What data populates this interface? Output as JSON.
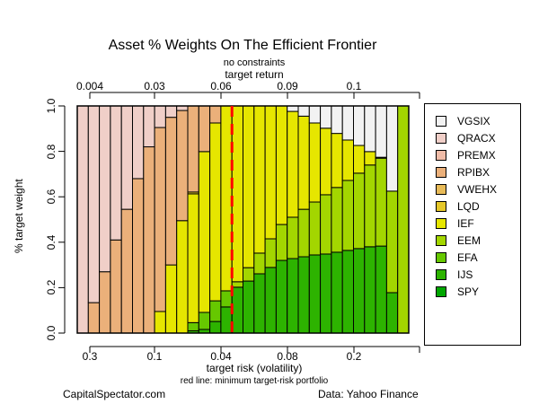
{
  "chart_data": {
    "type": "bar",
    "stacked": true,
    "title": "Asset % Weights On The Efficient Frontier",
    "subtitle": "no constraints",
    "top_axis_label": "target return",
    "top_axis_ticks": [
      "0.004",
      "0.03",
      "0.06",
      "0.09",
      "0.1",
      ""
    ],
    "xlabel": "target risk (volatility)",
    "x_ticks": [
      "0.3",
      "0.1",
      "0.04",
      "0.08",
      "0.2",
      ""
    ],
    "ylabel": "% target weight",
    "y_ticks": [
      "0.0",
      "0.2",
      "0.4",
      "0.6",
      "0.8",
      "1.0"
    ],
    "ylim": [
      0,
      1
    ],
    "annotation": "red line: minimum target-risk portfolio",
    "min_risk_bar_boundary": 14,
    "bar_count": 30,
    "series": [
      {
        "name": "SPY",
        "color": "#00A600",
        "values": [
          0,
          0,
          0,
          0,
          0,
          0,
          0,
          0,
          0,
          0,
          0,
          0,
          0,
          0,
          0,
          0,
          0,
          0,
          0,
          0,
          0,
          0,
          0,
          0,
          0,
          0,
          0,
          0,
          0,
          0
        ]
      },
      {
        "name": "IJS",
        "color": "#2DB300",
        "values": [
          0,
          0,
          0,
          0,
          0,
          0,
          0,
          0,
          0,
          0,
          0.01,
          0.016,
          0.051,
          0.115,
          0.202,
          0.229,
          0.261,
          0.289,
          0.32,
          0.328,
          0.336,
          0.344,
          0.348,
          0.356,
          0.364,
          0.372,
          0.38,
          0.383,
          0.178,
          0
        ]
      },
      {
        "name": "EFA",
        "color": "#66C800",
        "values": [
          0,
          0,
          0,
          0,
          0,
          0,
          0,
          0,
          0,
          0,
          0.036,
          0.075,
          0.091,
          0.071,
          0,
          0,
          0,
          0,
          0,
          0,
          0,
          0,
          0,
          0,
          0,
          0,
          0,
          0,
          0,
          0
        ]
      },
      {
        "name": "EEM",
        "color": "#A3D600",
        "values": [
          0,
          0,
          0,
          0,
          0,
          0,
          0,
          0,
          0,
          0,
          0,
          0,
          0,
          0,
          0.024,
          0.059,
          0.091,
          0.126,
          0.158,
          0.182,
          0.209,
          0.233,
          0.261,
          0.285,
          0.308,
          0.332,
          0.36,
          0.387,
          0.447,
          1.0
        ]
      },
      {
        "name": "IEF",
        "color": "#E6E600",
        "values": [
          0,
          0,
          0,
          0,
          0,
          0,
          0,
          0.095,
          0.3,
          0.495,
          0.567,
          0.708,
          0.783,
          0.814,
          0.774,
          0.712,
          0.648,
          0.585,
          0.522,
          0.466,
          0.41,
          0.348,
          0.293,
          0.238,
          0.178,
          0.122,
          0.059,
          0.004,
          0,
          0
        ]
      },
      {
        "name": "LQD",
        "color": "#E6C82A",
        "values": [
          0,
          0,
          0,
          0,
          0,
          0,
          0,
          0,
          0,
          0,
          0.008,
          0,
          0,
          0,
          0,
          0,
          0,
          0,
          0,
          0,
          0,
          0,
          0,
          0,
          0,
          0,
          0,
          0,
          0,
          0
        ]
      },
      {
        "name": "VWEHX",
        "color": "#E8BB58",
        "values": [
          0,
          0,
          0,
          0,
          0,
          0,
          0,
          0,
          0,
          0,
          0,
          0,
          0,
          0,
          0,
          0,
          0,
          0,
          0,
          0,
          0,
          0,
          0,
          0,
          0,
          0,
          0,
          0,
          0,
          0
        ]
      },
      {
        "name": "RPIBX",
        "color": "#EBB07A",
        "values": [
          0,
          0.134,
          0.27,
          0.41,
          0.545,
          0.68,
          0.82,
          0.81,
          0.65,
          0.485,
          0.379,
          0.201,
          0.075,
          0,
          0,
          0,
          0,
          0,
          0,
          0,
          0,
          0,
          0,
          0,
          0,
          0,
          0,
          0,
          0,
          0
        ]
      },
      {
        "name": "PREMX",
        "color": "#F0BCA8",
        "values": [
          0,
          0,
          0,
          0,
          0,
          0,
          0,
          0,
          0,
          0,
          0,
          0,
          0,
          0,
          0,
          0,
          0,
          0,
          0,
          0,
          0,
          0,
          0,
          0,
          0,
          0,
          0,
          0,
          0,
          0
        ]
      },
      {
        "name": "QRACX",
        "color": "#F0CFC8",
        "values": [
          1.0,
          0.866,
          0.73,
          0.59,
          0.455,
          0.32,
          0.18,
          0.095,
          0.05,
          0.02,
          0,
          0,
          0,
          0,
          0,
          0,
          0,
          0,
          0,
          0,
          0,
          0,
          0,
          0,
          0,
          0,
          0,
          0,
          0,
          0
        ]
      },
      {
        "name": "VGSIX",
        "color": "#F2F2F2",
        "values": [
          0,
          0,
          0,
          0,
          0,
          0,
          0,
          0,
          0,
          0,
          0,
          0,
          0,
          0,
          0,
          0,
          0,
          0,
          0,
          0.024,
          0.045,
          0.075,
          0.098,
          0.121,
          0.15,
          0.174,
          0.201,
          0.226,
          0.375,
          0
        ]
      }
    ],
    "legend_position": "right",
    "grid": false
  },
  "legend": {
    "items": [
      {
        "label": "VGSIX",
        "color": "#F2F2F2"
      },
      {
        "label": "QRACX",
        "color": "#F0CFC8"
      },
      {
        "label": "PREMX",
        "color": "#F0BCA8"
      },
      {
        "label": "RPIBX",
        "color": "#EBB07A"
      },
      {
        "label": "VWEHX",
        "color": "#E8BB58"
      },
      {
        "label": "LQD",
        "color": "#E6C82A"
      },
      {
        "label": "IEF",
        "color": "#E6E600"
      },
      {
        "label": "EEM",
        "color": "#A3D600"
      },
      {
        "label": "EFA",
        "color": "#66C800"
      },
      {
        "label": "IJS",
        "color": "#2DB300"
      },
      {
        "label": "SPY",
        "color": "#00A600"
      }
    ]
  },
  "footer": {
    "left": "CapitalSpectator.com",
    "right": "Data: Yahoo Finance"
  },
  "colors": {
    "min_risk_line": "#FF0000"
  }
}
